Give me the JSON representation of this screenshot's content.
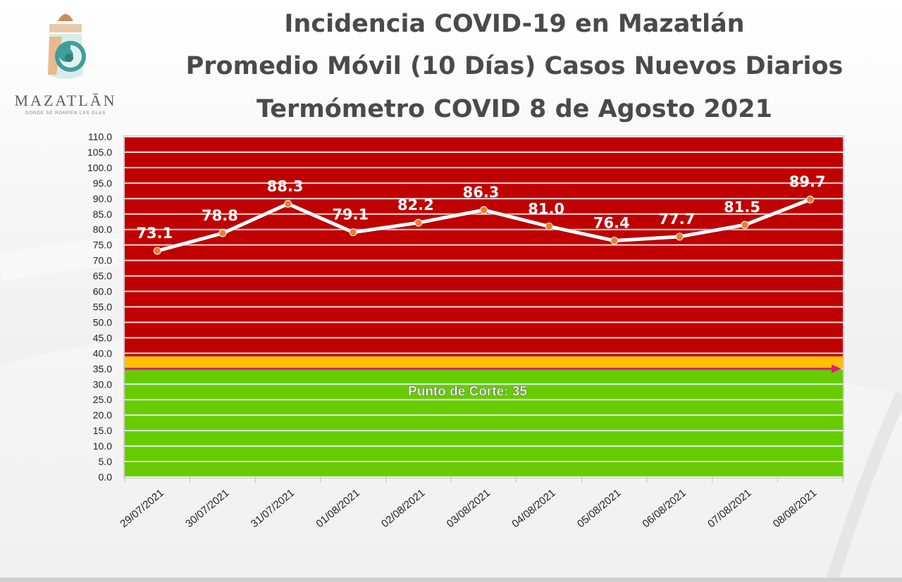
{
  "logo": {
    "wordmark": "MAZATLĀN",
    "tagline": "DONDE SE ROMPEN LAS OLAS"
  },
  "titles": [
    "Incidencia COVID-19 en Mazatlán",
    "Promedio Móvil (10 Días) Casos Nuevos Diarios",
    "Termómetro COVID 8 de Agosto 2021"
  ],
  "chart_data": {
    "type": "line",
    "categories": [
      "29/07/2021",
      "30/07/2021",
      "31/07/2021",
      "01/08/2021",
      "02/08/2021",
      "03/08/2021",
      "04/08/2021",
      "05/08/2021",
      "06/08/2021",
      "07/08/2021",
      "08/08/2021"
    ],
    "values": [
      73.1,
      78.8,
      88.3,
      79.1,
      82.2,
      86.3,
      81.0,
      76.4,
      77.7,
      81.5,
      89.7
    ],
    "value_labels": [
      "73.1",
      "78.8",
      "88.3",
      "79.1",
      "82.2",
      "86.3",
      "81.0",
      "76.4",
      "77.7",
      "81.5",
      "89.7"
    ],
    "ylim": [
      0,
      110
    ],
    "ytick_step": 5,
    "ytick_labels": [
      "0.0",
      "5.0",
      "10.0",
      "15.0",
      "20.0",
      "25.0",
      "30.0",
      "35.0",
      "40.0",
      "45.0",
      "50.0",
      "55.0",
      "60.0",
      "65.0",
      "70.0",
      "75.0",
      "80.0",
      "85.0",
      "90.0",
      "95.0",
      "100.0",
      "105.0",
      "110.0"
    ],
    "grid": true,
    "threshold": {
      "value": 35,
      "label": "Punto de Corte: 35",
      "color": "#e0197d"
    },
    "bands": [
      {
        "from": 0,
        "to": 35,
        "color": "#66cc00"
      },
      {
        "from": 35,
        "to": 39,
        "color": "#ffc000"
      },
      {
        "from": 39,
        "to": 110,
        "color": "#c00000"
      }
    ],
    "line_color": "#ffffff",
    "marker_color": "#ed7d31"
  }
}
